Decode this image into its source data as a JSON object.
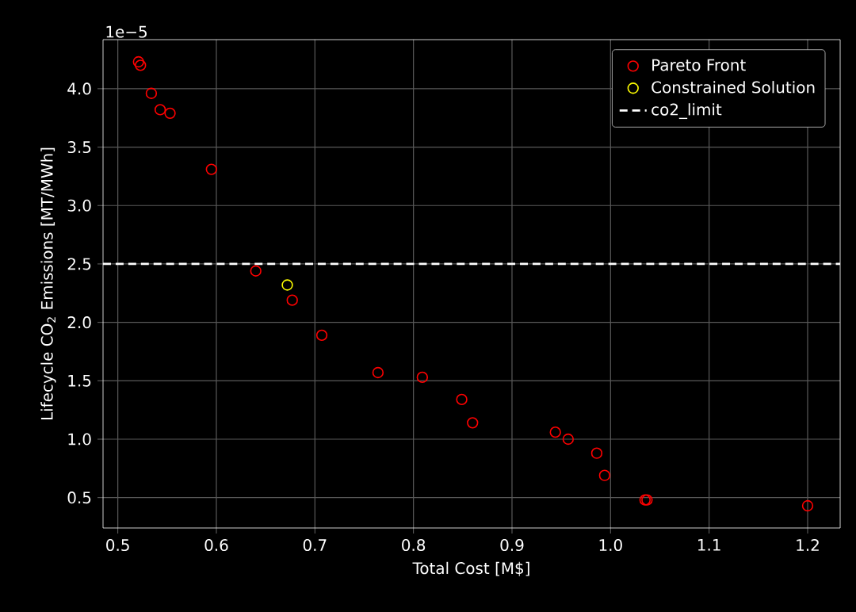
{
  "chart_data": {
    "type": "scatter",
    "xlabel": "Total Cost [M$]",
    "ylabel": "Lifecycle CO$_{2}$ Emissions [MT/MWh]",
    "annotations": [
      "1e−5"
    ],
    "series": [
      {
        "name": "Pareto Front",
        "color": "#ff0000",
        "x": [
          0.521,
          0.523,
          0.534,
          0.543,
          0.553,
          0.595,
          0.64,
          0.677,
          0.707,
          0.764,
          0.809,
          0.849,
          0.86,
          0.944,
          0.957,
          0.986,
          0.994,
          1.035,
          1.037,
          1.2
        ],
        "values": [
          4.23,
          4.2,
          3.96,
          3.82,
          3.79,
          3.31,
          2.44,
          2.19,
          1.89,
          1.57,
          1.53,
          1.34,
          1.14,
          1.06,
          1.0,
          0.88,
          0.69,
          0.48,
          0.48,
          0.43
        ]
      },
      {
        "name": "Constrained Solution",
        "color": "#ffff00",
        "x": [
          0.672
        ],
        "values": [
          2.32
        ]
      }
    ],
    "ref_lines": [
      {
        "axis": "y",
        "value": 2.5,
        "label": "co2_limit",
        "color": "#ffffff",
        "line_style": "dashed"
      }
    ],
    "marker": "circle",
    "grid": true,
    "legend": "top right",
    "xlim": [
      0.485,
      1.233
    ],
    "ylim": [
      0.24,
      4.42
    ],
    "xticks": [
      0.5,
      0.6,
      0.7,
      0.8,
      0.9,
      {
        "value": 1.0,
        "label": "1.0"
      },
      1.1,
      1.2
    ],
    "yticks": [
      0.5,
      {
        "value": 1.0,
        "label": "1.0"
      },
      1.5,
      {
        "value": 2.0,
        "label": "2.0"
      },
      2.5,
      {
        "value": 3.0,
        "label": "3.0"
      },
      3.5,
      {
        "value": 4.0,
        "label": "4.0"
      }
    ]
  }
}
